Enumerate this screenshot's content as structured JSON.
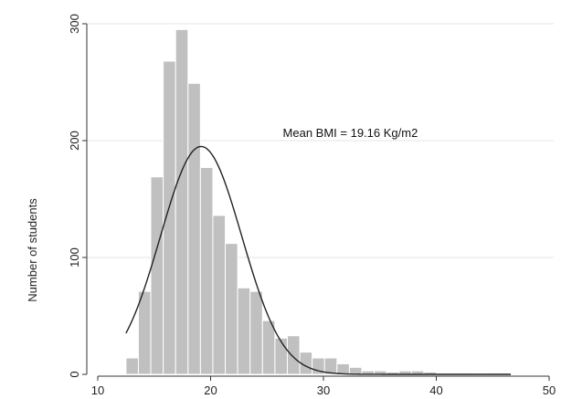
{
  "chart_data": {
    "type": "bar",
    "subtype": "histogram",
    "ylabel": "Number of students",
    "xlabel": "",
    "xlim": [
      10,
      50
    ],
    "ylim": [
      0,
      300
    ],
    "xticks": [
      "10",
      "20",
      "30",
      "40",
      "50"
    ],
    "yticks": [
      "0",
      "100",
      "200",
      "300"
    ],
    "grid": true,
    "bin_width": 1.1,
    "bins": [
      {
        "x0": 12.5,
        "x1": 13.6,
        "count": 14
      },
      {
        "x0": 13.6,
        "x1": 14.7,
        "count": 71
      },
      {
        "x0": 14.7,
        "x1": 15.8,
        "count": 169
      },
      {
        "x0": 15.8,
        "x1": 16.9,
        "count": 268
      },
      {
        "x0": 16.9,
        "x1": 18.0,
        "count": 295
      },
      {
        "x0": 18.0,
        "x1": 19.1,
        "count": 249
      },
      {
        "x0": 19.1,
        "x1": 20.2,
        "count": 177
      },
      {
        "x0": 20.2,
        "x1": 21.3,
        "count": 136
      },
      {
        "x0": 21.3,
        "x1": 22.4,
        "count": 112
      },
      {
        "x0": 22.4,
        "x1": 23.5,
        "count": 74
      },
      {
        "x0": 23.5,
        "x1": 24.6,
        "count": 71
      },
      {
        "x0": 24.6,
        "x1": 25.7,
        "count": 46
      },
      {
        "x0": 25.7,
        "x1": 26.8,
        "count": 31
      },
      {
        "x0": 26.8,
        "x1": 27.9,
        "count": 33
      },
      {
        "x0": 27.9,
        "x1": 29.0,
        "count": 19
      },
      {
        "x0": 29.0,
        "x1": 30.1,
        "count": 14
      },
      {
        "x0": 30.1,
        "x1": 31.2,
        "count": 14
      },
      {
        "x0": 31.2,
        "x1": 32.3,
        "count": 9
      },
      {
        "x0": 32.3,
        "x1": 33.4,
        "count": 6
      },
      {
        "x0": 33.4,
        "x1": 34.5,
        "count": 3
      },
      {
        "x0": 34.5,
        "x1": 35.6,
        "count": 3
      },
      {
        "x0": 35.6,
        "x1": 36.7,
        "count": 2
      },
      {
        "x0": 36.7,
        "x1": 37.8,
        "count": 3
      },
      {
        "x0": 37.8,
        "x1": 38.9,
        "count": 3
      },
      {
        "x0": 38.9,
        "x1": 40.0,
        "count": 2
      },
      {
        "x0": 40.0,
        "x1": 41.1,
        "count": 1
      },
      {
        "x0": 41.1,
        "x1": 42.2,
        "count": 1
      },
      {
        "x0": 42.2,
        "x1": 43.3,
        "count": 1
      },
      {
        "x0": 43.3,
        "x1": 44.4,
        "count": 0
      },
      {
        "x0": 44.4,
        "x1": 45.5,
        "count": 1
      },
      {
        "x0": 45.5,
        "x1": 46.6,
        "count": 1
      }
    ],
    "normal_curve": {
      "mean": 19.16,
      "peak": 195,
      "sd": 3.6,
      "x_range": [
        12.5,
        46.6
      ]
    },
    "annotation": {
      "text": "Mean BMI = 19.16 Kg/m2",
      "x": 26.4,
      "y": 203
    },
    "colors": {
      "bar_fill": "#c0c0c0",
      "bar_stroke": "#ffffff",
      "curve": "#222222",
      "grid": "#e6e6e6",
      "axis": "#333333"
    }
  }
}
